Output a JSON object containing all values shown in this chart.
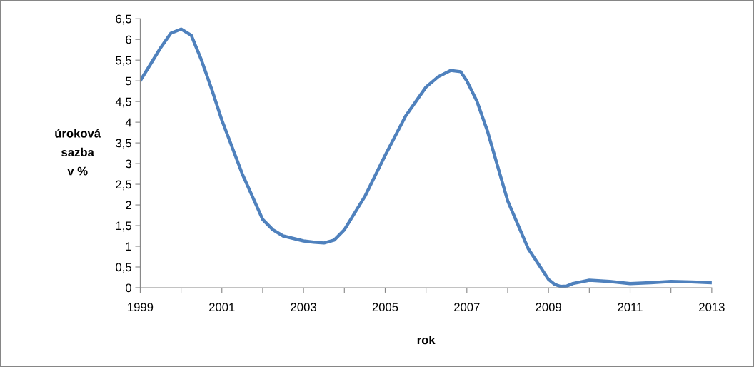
{
  "chart_data": {
    "type": "line",
    "xlabel": "rok",
    "ylabel": "úroková\nsazba\nv %",
    "x": [
      1999,
      1999.25,
      1999.5,
      1999.75,
      2000,
      2000.25,
      2000.5,
      2000.75,
      2001,
      2001.5,
      2002,
      2002.25,
      2002.5,
      2003,
      2003.25,
      2003.5,
      2003.75,
      2004,
      2004.5,
      2005,
      2005.5,
      2006,
      2006.3,
      2006.6,
      2006.85,
      2007,
      2007.25,
      2007.5,
      2008,
      2008.5,
      2009,
      2009.15,
      2009.3,
      2009.45,
      2009.6,
      2010,
      2010.5,
      2011,
      2011.5,
      2012,
      2012.5,
      2013
    ],
    "series": [
      {
        "color": "#4f81bd",
        "values": [
          5.0,
          5.4,
          5.8,
          6.15,
          6.25,
          6.1,
          5.5,
          4.8,
          4.05,
          2.75,
          1.65,
          1.4,
          1.25,
          1.13,
          1.1,
          1.08,
          1.15,
          1.4,
          2.2,
          3.2,
          4.15,
          4.85,
          5.1,
          5.25,
          5.22,
          5.0,
          4.5,
          3.8,
          2.1,
          0.95,
          0.2,
          0.08,
          0.03,
          0.04,
          0.1,
          0.18,
          0.15,
          0.1,
          0.12,
          0.15,
          0.14,
          0.12
        ]
      }
    ],
    "xlim": [
      1999,
      2013
    ],
    "xticks": [
      1999,
      {
        "value": 2000,
        "label": null
      },
      2001,
      {
        "value": 2002,
        "label": null
      },
      2003,
      {
        "value": 2004,
        "label": null
      },
      2005,
      {
        "value": 2006,
        "label": null
      },
      2007,
      {
        "value": 2008,
        "label": null
      },
      2009,
      {
        "value": 2010,
        "label": null
      },
      2011,
      {
        "value": 2012,
        "label": null
      },
      2013
    ],
    "ylim": [
      0,
      6.5
    ],
    "yticks": [
      0,
      {
        "value": 0.5,
        "label": "0,5"
      },
      1,
      {
        "value": 1.5,
        "label": "1,5"
      },
      2,
      {
        "value": 2.5,
        "label": "2,5"
      },
      3,
      {
        "value": 3.5,
        "label": "3,5"
      },
      4,
      {
        "value": 4.5,
        "label": "4,5"
      },
      5,
      {
        "value": 5.5,
        "label": "5,5"
      },
      6,
      {
        "value": 6.5,
        "label": "6,5"
      }
    ],
    "grid": false,
    "legend": false,
    "marker": "none",
    "line_style": "solid"
  }
}
